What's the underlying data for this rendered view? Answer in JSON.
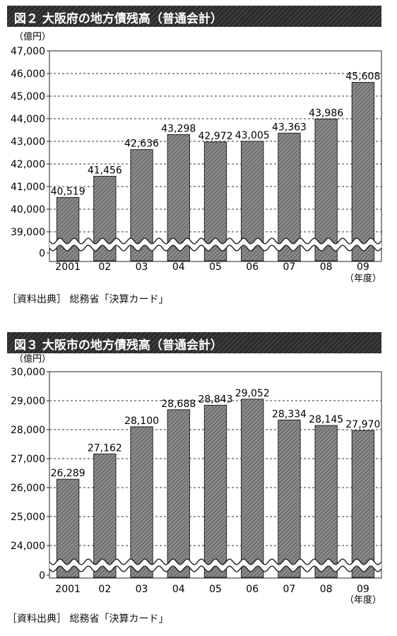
{
  "colors": {
    "bar_fill": "#8a8a8a",
    "bar_stroke": "#222222",
    "grid": "#333333",
    "title_bg": "#2a2a2a"
  },
  "chart_data": [
    {
      "type": "bar",
      "title": "図２ 大阪府の地方債残高（普通会計）",
      "ylabel": "（億円）",
      "xlabel": "（年度）",
      "categories": [
        "2001",
        "02",
        "03",
        "04",
        "05",
        "06",
        "07",
        "08",
        "09"
      ],
      "values": [
        40519,
        41456,
        42636,
        43298,
        42972,
        43005,
        43363,
        43986,
        45608
      ],
      "value_labels": [
        "40,519",
        "41,456",
        "42,636",
        "43,298",
        "42,972",
        "43,005",
        "43,363",
        "43,986",
        "45,608"
      ],
      "yticks": [
        {
          "v": 47000,
          "label": "47,000"
        },
        {
          "v": 46000,
          "label": "46,000"
        },
        {
          "v": 45000,
          "label": "45,000"
        },
        {
          "v": 44000,
          "label": "44,000"
        },
        {
          "v": 43000,
          "label": "43,000"
        },
        {
          "v": 42000,
          "label": "42,000"
        },
        {
          "v": 41000,
          "label": "41,000"
        },
        {
          "v": 40000,
          "label": "40,000"
        },
        {
          "v": 39000,
          "label": "39,000"
        },
        {
          "v": 0,
          "label": "0"
        }
      ],
      "ylim": [
        39000,
        47000
      ],
      "axis_break": true,
      "grid": "dashed horizontal",
      "source": "［資料出典］ 総務省「決算カード」"
    },
    {
      "type": "bar",
      "title": "図３ 大阪市の地方債残高（普通会計）",
      "ylabel": "（億円）",
      "xlabel": "（年度）",
      "categories": [
        "2001",
        "02",
        "03",
        "04",
        "05",
        "06",
        "07",
        "08",
        "09"
      ],
      "values": [
        26289,
        27162,
        28100,
        28688,
        28843,
        29052,
        28334,
        28145,
        27970
      ],
      "value_labels": [
        "26,289",
        "27,162",
        "28,100",
        "28,688",
        "28,843",
        "29,052",
        "28,334",
        "28,145",
        "27,970"
      ],
      "yticks": [
        {
          "v": 30000,
          "label": "30,000"
        },
        {
          "v": 29000,
          "label": "29,000"
        },
        {
          "v": 28000,
          "label": "28,000"
        },
        {
          "v": 27000,
          "label": "27,000"
        },
        {
          "v": 26000,
          "label": "26,000"
        },
        {
          "v": 25000,
          "label": "25,000"
        },
        {
          "v": 24000,
          "label": "24,000"
        },
        {
          "v": 0,
          "label": "0"
        }
      ],
      "ylim": [
        23500,
        30000
      ],
      "axis_break": true,
      "grid": "dashed horizontal",
      "source": "［資料出典］ 総務省「決算カード」"
    }
  ]
}
